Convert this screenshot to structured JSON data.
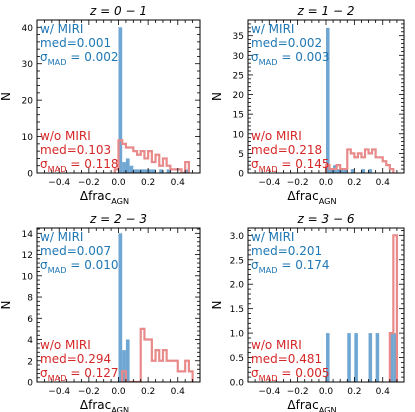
{
  "figure": {
    "xlabel_main": "Δfrac",
    "xlabel_sub": "AGN",
    "ylabel": "N"
  },
  "colors": {
    "miri": "#6fa6d2",
    "miri_text": "#1f77b4",
    "nomiri": "#e88a8a",
    "nomiri_text": "#d62728"
  },
  "chart_data": [
    {
      "type": "bar",
      "title": "z = 0 − 1",
      "title_main": "z = 0 − 1",
      "xlim": [
        -0.55,
        0.55
      ],
      "ylim": [
        0,
        42
      ],
      "xticks": [
        -0.4,
        -0.2,
        0.0,
        0.2,
        0.4
      ],
      "xtick_labels": [
        "−0.4",
        "−0.2",
        "0.0",
        "0.2",
        "0.4"
      ],
      "yticks": [
        0,
        10,
        20,
        30,
        40
      ],
      "ytick_labels": [
        "0",
        "10",
        "20",
        "30",
        "40"
      ],
      "xlabel": "Δfrac_AGN",
      "ylabel": "N",
      "bin_width": 0.025,
      "series": [
        {
          "name": "w/ MIRI",
          "style": "filled",
          "x": [
            0.0,
            0.025,
            0.05,
            0.075,
            0.1,
            0.125,
            0.15,
            0.175,
            0.2,
            0.225,
            0.25,
            0.275,
            0.3,
            0.325,
            0.35,
            0.375,
            0.4,
            0.425,
            0.45
          ],
          "values": [
            40,
            3,
            4,
            2,
            1,
            1,
            1,
            1,
            1,
            1,
            0,
            1,
            0,
            1,
            0,
            0,
            0,
            0,
            1
          ]
        },
        {
          "name": "w/o MIRI",
          "style": "step",
          "x": [
            -0.025,
            0.0,
            0.025,
            0.05,
            0.075,
            0.1,
            0.125,
            0.15,
            0.175,
            0.2,
            0.225,
            0.25,
            0.275,
            0.3,
            0.325,
            0.35,
            0.375,
            0.4,
            0.425,
            0.45
          ],
          "values": [
            1,
            9,
            8,
            7,
            7,
            6,
            5,
            6,
            4,
            6,
            3,
            5,
            2,
            4,
            2,
            1,
            1,
            1,
            0,
            3
          ]
        }
      ],
      "annotations": {
        "miri": {
          "label": "w/ MIRI",
          "med": "med=0.001",
          "sigma_main": "σ",
          "sigma_sub": "MAD",
          "sigma_val": " = 0.002"
        },
        "nomiri": {
          "label": "w/o MIRI",
          "med": "med=0.103",
          "sigma_main": "σ",
          "sigma_sub": "MAD",
          "sigma_val": " = 0.118"
        }
      }
    },
    {
      "type": "bar",
      "title": "z = 1 − 2",
      "title_main": "z = 1 − 2",
      "xlim": [
        -0.55,
        0.55
      ],
      "ylim": [
        0,
        39
      ],
      "xticks": [
        -0.4,
        -0.2,
        0.0,
        0.2,
        0.4
      ],
      "xtick_labels": [
        "−0.4",
        "−0.2",
        "0.0",
        "0.2",
        "0.4"
      ],
      "yticks": [
        0,
        5,
        10,
        15,
        20,
        25,
        30,
        35
      ],
      "ytick_labels": [
        "0",
        "5",
        "10",
        "15",
        "20",
        "25",
        "30",
        "35"
      ],
      "xlabel": "Δfrac_AGN",
      "ylabel": "N",
      "bin_width": 0.025,
      "series": [
        {
          "name": "w/ MIRI",
          "style": "filled",
          "x": [
            0.0,
            0.025,
            0.05,
            0.075,
            0.1,
            0.125,
            0.15,
            0.175,
            0.2,
            0.25,
            0.3
          ],
          "values": [
            37,
            1,
            2,
            1,
            1,
            1,
            0,
            1,
            0,
            1,
            1
          ]
        },
        {
          "name": "w/o MIRI",
          "style": "step",
          "x": [
            0.0,
            0.025,
            0.05,
            0.075,
            0.1,
            0.125,
            0.15,
            0.175,
            0.2,
            0.225,
            0.25,
            0.275,
            0.3,
            0.325,
            0.35,
            0.375,
            0.4,
            0.425,
            0.45
          ],
          "values": [
            2,
            1,
            1,
            2,
            1,
            1,
            6,
            5,
            4,
            5,
            4,
            6,
            5,
            6,
            4,
            4,
            3,
            2,
            1
          ]
        }
      ],
      "annotations": {
        "miri": {
          "label": "w/ MIRI",
          "med": "med=0.002",
          "sigma_main": "σ",
          "sigma_sub": "MAD",
          "sigma_val": " = 0.003"
        },
        "nomiri": {
          "label": "w/o MIRI",
          "med": "med=0.218",
          "sigma_main": "σ",
          "sigma_sub": "MAD",
          "sigma_val": " = 0.145"
        }
      }
    },
    {
      "type": "bar",
      "title": "z = 2 − 3",
      "title_main": "z = 2 − 3",
      "xlim": [
        -0.55,
        0.55
      ],
      "ylim": [
        0,
        14.5
      ],
      "xticks": [
        -0.4,
        -0.2,
        0.0,
        0.2,
        0.4
      ],
      "xtick_labels": [
        "−0.4",
        "−0.2",
        "0.0",
        "0.2",
        "0.4"
      ],
      "yticks": [
        0,
        2,
        4,
        6,
        8,
        10,
        12,
        14
      ],
      "ytick_labels": [
        "0",
        "2",
        "4",
        "6",
        "8",
        "10",
        "12",
        "14"
      ],
      "xlabel": "Δfrac_AGN",
      "ylabel": "N",
      "bin_width": 0.025,
      "series": [
        {
          "name": "w/ MIRI",
          "style": "filled",
          "x": [
            0.0,
            0.025,
            0.05
          ],
          "values": [
            14,
            3,
            4
          ]
        },
        {
          "name": "w/o MIRI",
          "style": "step",
          "x": [
            0.025,
            0.05,
            0.075,
            0.1,
            0.125,
            0.15,
            0.175,
            0.2,
            0.225,
            0.25,
            0.275,
            0.3,
            0.325,
            0.35,
            0.375,
            0.4,
            0.425,
            0.45,
            0.475
          ],
          "values": [
            1,
            0,
            0,
            0,
            0,
            5,
            4,
            4,
            2,
            3,
            2,
            3,
            2,
            2,
            2,
            1,
            1,
            2,
            1
          ]
        }
      ],
      "annotations": {
        "miri": {
          "label": "w/ MIRI",
          "med": "med=0.007",
          "sigma_main": "σ",
          "sigma_sub": "MAD",
          "sigma_val": " = 0.010"
        },
        "nomiri": {
          "label": "w/o MIRI",
          "med": "med=0.294",
          "sigma_main": "σ",
          "sigma_sub": "MAD",
          "sigma_val": " = 0.127"
        }
      }
    },
    {
      "type": "bar",
      "title": "z = 3 − 6",
      "title_main": "z = 3 − 6",
      "xlim": [
        -0.55,
        0.55
      ],
      "ylim": [
        0,
        3.15
      ],
      "xticks": [
        -0.4,
        -0.2,
        0.0,
        0.2,
        0.4
      ],
      "xtick_labels": [
        "−0.4",
        "−0.2",
        "0.0",
        "0.2",
        "0.4"
      ],
      "yticks": [
        0,
        0.5,
        1.0,
        1.5,
        2.0,
        2.5,
        3.0
      ],
      "ytick_labels": [
        "0.0",
        "0.5",
        "1.0",
        "1.5",
        "2.0",
        "2.5",
        "3.0"
      ],
      "xlabel": "Δfrac_AGN",
      "ylabel": "N",
      "bin_width": 0.025,
      "series": [
        {
          "name": "w/ MIRI",
          "style": "filled",
          "x": [
            0.0,
            0.15,
            0.2,
            0.3,
            0.35,
            0.45,
            0.475
          ],
          "values": [
            1,
            1,
            1,
            1,
            1,
            1,
            1
          ]
        },
        {
          "name": "w/o MIRI",
          "style": "step",
          "x": [
            0.45,
            0.475
          ],
          "values": [
            1,
            3
          ]
        }
      ],
      "annotations": {
        "miri": {
          "label": "w/ MIRI",
          "med": "med=0.201",
          "sigma_main": "σ",
          "sigma_sub": "MAD",
          "sigma_val": " = 0.174"
        },
        "nomiri": {
          "label": "w/o MIRI",
          "med": "med=0.481",
          "sigma_main": "σ",
          "sigma_sub": "MAD",
          "sigma_val": " = 0.005"
        }
      }
    }
  ]
}
